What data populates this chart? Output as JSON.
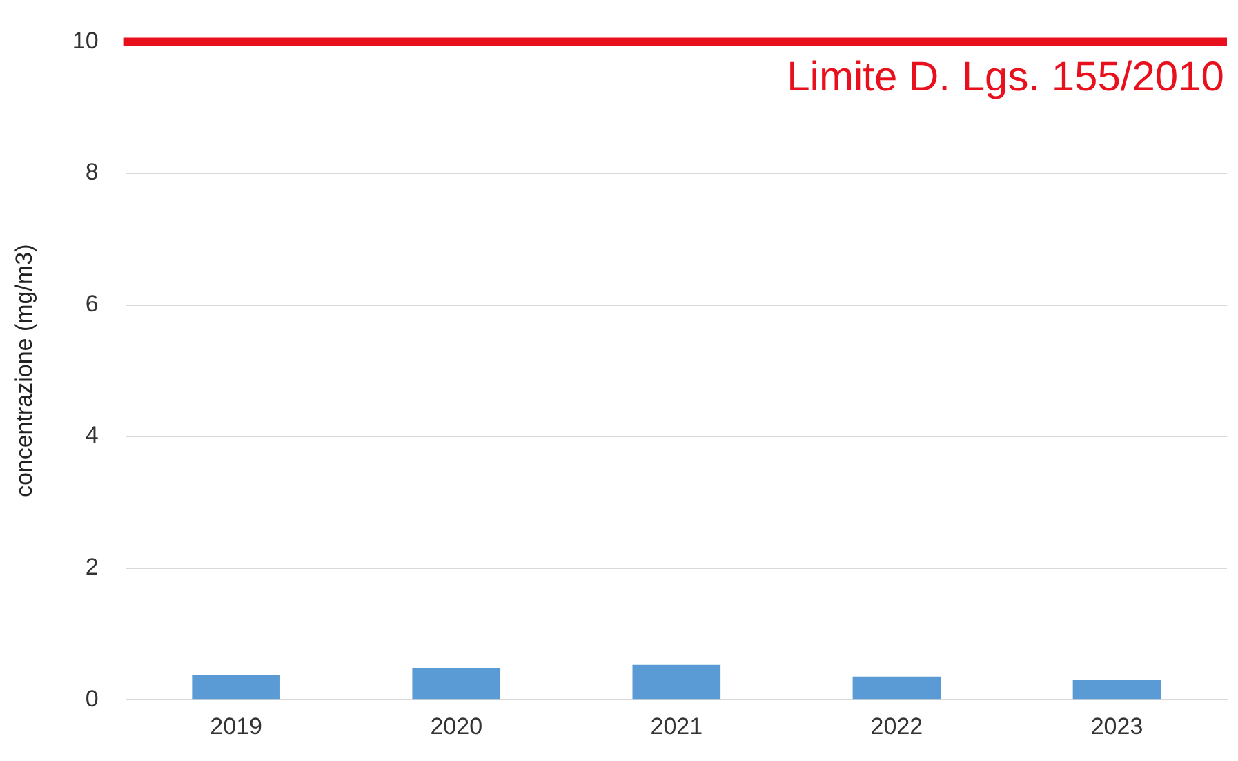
{
  "chart_data": {
    "type": "bar",
    "ylabel": "concentrazione (mg/m3)",
    "categories": [
      "2019",
      "2020",
      "2021",
      "2022",
      "2023"
    ],
    "values": [
      0.37,
      0.48,
      0.53,
      0.35,
      0.3
    ],
    "color": "#5b9bd5",
    "ylim": [
      0,
      10
    ],
    "yticks": [
      0,
      2,
      4,
      6,
      8,
      10
    ],
    "grid": "y",
    "legend": false,
    "ref_lines": [
      {
        "axis": "y",
        "value": 10,
        "label": "Limite D. Lgs. 155/2010",
        "color": "#e8101c"
      }
    ]
  }
}
